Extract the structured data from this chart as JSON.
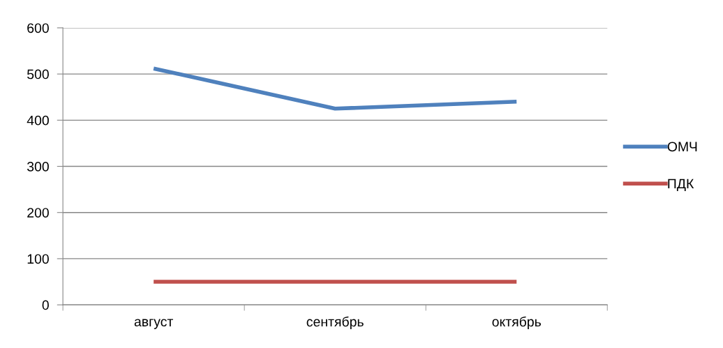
{
  "chart_data": {
    "type": "line",
    "categories": [
      "август",
      "сентябрь",
      "октябрь"
    ],
    "series": [
      {
        "name": "ОМЧ",
        "color": "#4f81bd",
        "values": [
          512,
          425,
          440
        ]
      },
      {
        "name": "ПДК",
        "color": "#c0504d",
        "values": [
          50,
          50,
          50
        ]
      }
    ],
    "ylim": [
      0,
      600
    ],
    "yticks": [
      0,
      100,
      200,
      300,
      400,
      500,
      600
    ],
    "grid": "y",
    "legend": "right",
    "marker": "none",
    "line_style": "solid"
  }
}
